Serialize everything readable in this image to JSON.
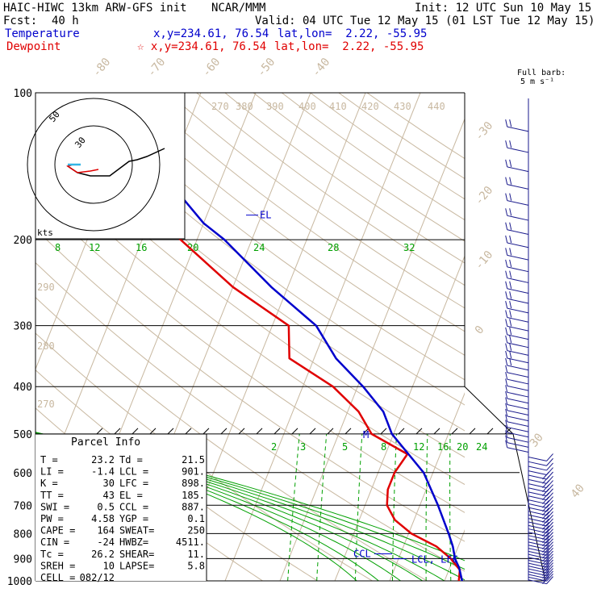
{
  "header": {
    "model": "HAIC-HIWC 13km ARW-GFS init",
    "org": "NCAR/MMM",
    "init": "Init: 12 UTC Sun 10 May 15",
    "fcst_label": "Fcst:",
    "fcst_value": "40 h",
    "valid": "Valid: 04 UTC Tue 12 May 15 (01 LST Tue 12 May 15)",
    "temperature_label": "Temperature",
    "dewpoint_label": "Dewpoint",
    "temp_xy": "x,y=234.61, 76.54",
    "dew_xy": "☆ x,y=234.61, 76.54",
    "temp_latlon": "lat,lon=  2.22, -55.95",
    "dew_latlon": "lat,lon=  2.22, -55.95"
  },
  "colors": {
    "temperature": "#e00000",
    "parcel": "#0000cc",
    "isotherm": "#c8b8a0",
    "dry_adiabat": "#c8b8a0",
    "moist_adiabat": "#00a000",
    "mixing_ratio": "#00a000",
    "isobar": "#000000",
    "wind": "#1a1a8c"
  },
  "pressure_labels": [
    "100",
    "200",
    "300",
    "400",
    "500",
    "600",
    "700",
    "800",
    "900",
    "1000"
  ],
  "barb_legend": {
    "line1": "Full barb:",
    "line2": "5 m s⁻¹"
  },
  "hodograph": {
    "ring_labels": [
      "50",
      "30"
    ],
    "unit": "kts"
  },
  "chart_data": {
    "type": "line",
    "title": "",
    "xlabel": "",
    "ylabel": "",
    "y_scale": "log",
    "ylim": [
      1000,
      100
    ],
    "isotherm_labels_top": [
      "-80",
      "-70",
      "-60",
      "-50",
      "-40"
    ],
    "isotherm_labels_right": [
      "-30",
      "-20",
      "-10",
      "0",
      "30",
      "40"
    ],
    "theta_labels": [
      "270",
      "380",
      "390",
      "400",
      "410",
      "420",
      "430",
      "440"
    ],
    "theta_labels_left": [
      "290",
      "280",
      "270"
    ],
    "moist_labels": [
      "8",
      "12",
      "16",
      "20",
      "24",
      "28",
      "32"
    ],
    "mixing_ratio_labels": [
      "2",
      "3",
      "5",
      "8",
      "12",
      "16",
      "20",
      "24"
    ],
    "series": [
      {
        "name": "Temperature",
        "points": [
          [
            1000,
            22.6
          ],
          [
            950,
            22.0
          ],
          [
            900,
            19.5
          ],
          [
            850,
            16.0
          ],
          [
            800,
            10.5
          ],
          [
            750,
            6.5
          ],
          [
            700,
            4.0
          ],
          [
            650,
            3.0
          ],
          [
            600,
            3.0
          ],
          [
            550,
            4.0
          ],
          [
            500,
            -4.0
          ],
          [
            450,
            -8.0
          ],
          [
            400,
            -14.5
          ],
          [
            350,
            -24.5
          ],
          [
            300,
            -27.0
          ],
          [
            250,
            -40.0
          ],
          [
            200,
            -53.0
          ],
          [
            175,
            -60.0
          ],
          [
            150,
            -67.0
          ],
          [
            125,
            -71.0
          ],
          [
            100,
            -72.5
          ]
        ]
      },
      {
        "name": "Parcel",
        "points": [
          [
            1000,
            23.2
          ],
          [
            940,
            21.7
          ],
          [
            901,
            20.3
          ],
          [
            850,
            19.0
          ],
          [
            800,
            17.3
          ],
          [
            700,
            13.3
          ],
          [
            600,
            8.3
          ],
          [
            500,
            -0.3
          ],
          [
            450,
            -3.5
          ],
          [
            400,
            -9.0
          ],
          [
            350,
            -16.0
          ],
          [
            300,
            -22.0
          ],
          [
            250,
            -33.0
          ],
          [
            200,
            -45.0
          ],
          [
            185,
            -50.0
          ],
          [
            150,
            -60.0
          ],
          [
            125,
            -68.0
          ],
          [
            100,
            -73.0
          ]
        ]
      }
    ],
    "annotations": [
      "EL",
      "M",
      "CCL",
      "LCL, LFC"
    ]
  },
  "parcel_info": {
    "title": "Parcel  Info",
    "rows": [
      [
        "T  =",
        "23.2",
        "Td =",
        "21.5"
      ],
      [
        "LI =",
        "-1.4",
        "LCL =",
        "901."
      ],
      [
        "K  =",
        "30",
        "LFC =",
        "898."
      ],
      [
        "TT =",
        "43",
        "EL  =",
        "185."
      ],
      [
        "SWI =",
        "0.5",
        "CCL =",
        "887."
      ],
      [
        "PW  =",
        "4.58",
        "YGP =",
        "0.1"
      ],
      [
        "CAPE =",
        "164",
        "SWEAT=",
        "250"
      ],
      [
        "CIN  =",
        "-24",
        "HWBZ=",
        "4511."
      ],
      [
        "Tc  =",
        "26.2",
        "SHEAR=",
        "11."
      ],
      [
        "SREH =",
        "10",
        "LAPSE=",
        "5.8"
      ],
      [
        "CELL =",
        "082/12",
        "",
        ""
      ]
    ]
  }
}
